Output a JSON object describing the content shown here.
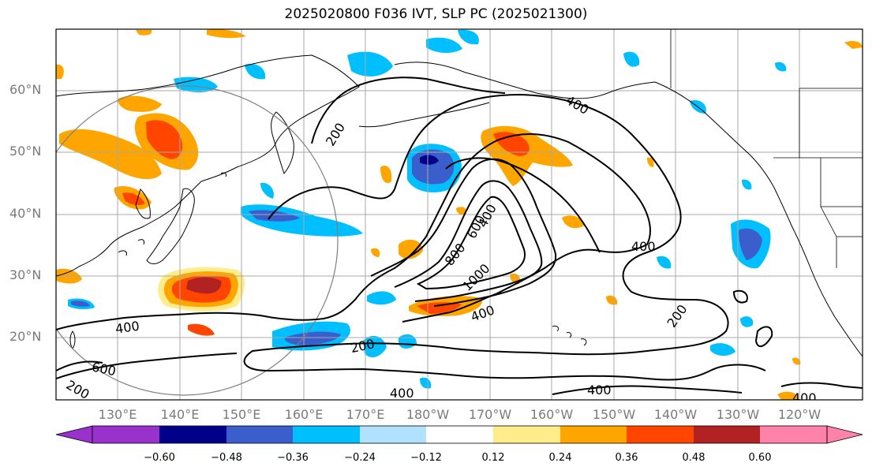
{
  "title": "2025020800 F036 IVT, SLP PC (2025021300)",
  "map": {
    "lat_labels": [
      "60°N",
      "50°N",
      "40°N",
      "30°N",
      "20°N"
    ],
    "lon_labels": [
      "130°E",
      "140°E",
      "150°E",
      "160°E",
      "170°E",
      "180°W",
      "170°W",
      "160°W",
      "150°W",
      "140°W",
      "130°W",
      "120°W"
    ],
    "contour_labels": [
      "200",
      "400",
      "400",
      "400",
      "400",
      "400",
      "400",
      "600",
      "600",
      "800",
      "1000",
      "200",
      "200",
      "200",
      "400",
      "400"
    ]
  },
  "colorbar": {
    "colors": [
      "#9932cc",
      "#00008b",
      "#3a5fcd",
      "#00bfff",
      "#b0e2ff",
      "#ffffff",
      "#ffec8b",
      "#ffa500",
      "#ff4500",
      "#b22222",
      "#ff82ab"
    ],
    "tick_labels": [
      "−0.60",
      "−0.48",
      "−0.36",
      "−0.24",
      "−0.12",
      "0.12",
      "0.24",
      "0.36",
      "0.48",
      "0.60"
    ]
  }
}
